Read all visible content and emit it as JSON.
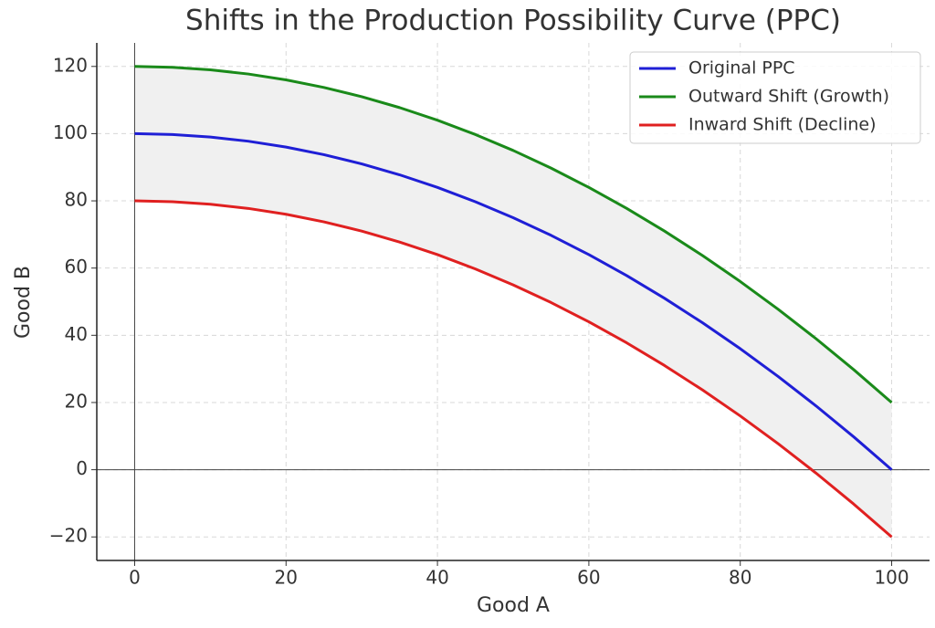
{
  "chart_data": {
    "type": "line",
    "title": "Shifts in the Production Possibility Curve (PPC)",
    "x_label": "Good A",
    "y_label": "Good B",
    "x": [
      0,
      5,
      10,
      15,
      20,
      25,
      30,
      35,
      40,
      45,
      50,
      55,
      60,
      65,
      70,
      75,
      80,
      85,
      90,
      95,
      100
    ],
    "series": [
      {
        "name": "Original PPC",
        "color": "#1f1fd6",
        "values": [
          100,
          99.75,
          99,
          97.75,
          96,
          93.75,
          91,
          87.75,
          84,
          79.75,
          75,
          69.75,
          64,
          57.75,
          51,
          43.75,
          36,
          27.75,
          19,
          9.75,
          0
        ]
      },
      {
        "name": "Outward Shift (Growth)",
        "color": "#1a8a1a",
        "values": [
          120,
          119.75,
          119,
          117.75,
          116,
          113.75,
          111,
          107.75,
          104,
          99.75,
          95,
          89.75,
          84,
          77.75,
          71,
          63.75,
          56,
          47.75,
          39,
          29.75,
          20
        ]
      },
      {
        "name": "Inward Shift (Decline)",
        "color": "#e02020",
        "values": [
          80,
          79.75,
          79,
          77.75,
          76,
          73.75,
          71,
          67.75,
          64,
          59.75,
          55,
          49.75,
          44,
          37.75,
          31,
          23.75,
          16,
          7.75,
          -1,
          -10.25,
          -20
        ]
      }
    ],
    "fill_between": [
      1,
      2
    ],
    "fill_color": "#f0f0f0",
    "xlim": [
      -5,
      105
    ],
    "ylim": [
      -27,
      127
    ],
    "xticks": [
      0,
      20,
      40,
      60,
      80,
      100
    ],
    "yticks": [
      {
        "value": -20,
        "label": "−20"
      },
      0,
      20,
      40,
      60,
      80,
      100,
      120
    ],
    "grid": true,
    "legend": "upper right"
  }
}
